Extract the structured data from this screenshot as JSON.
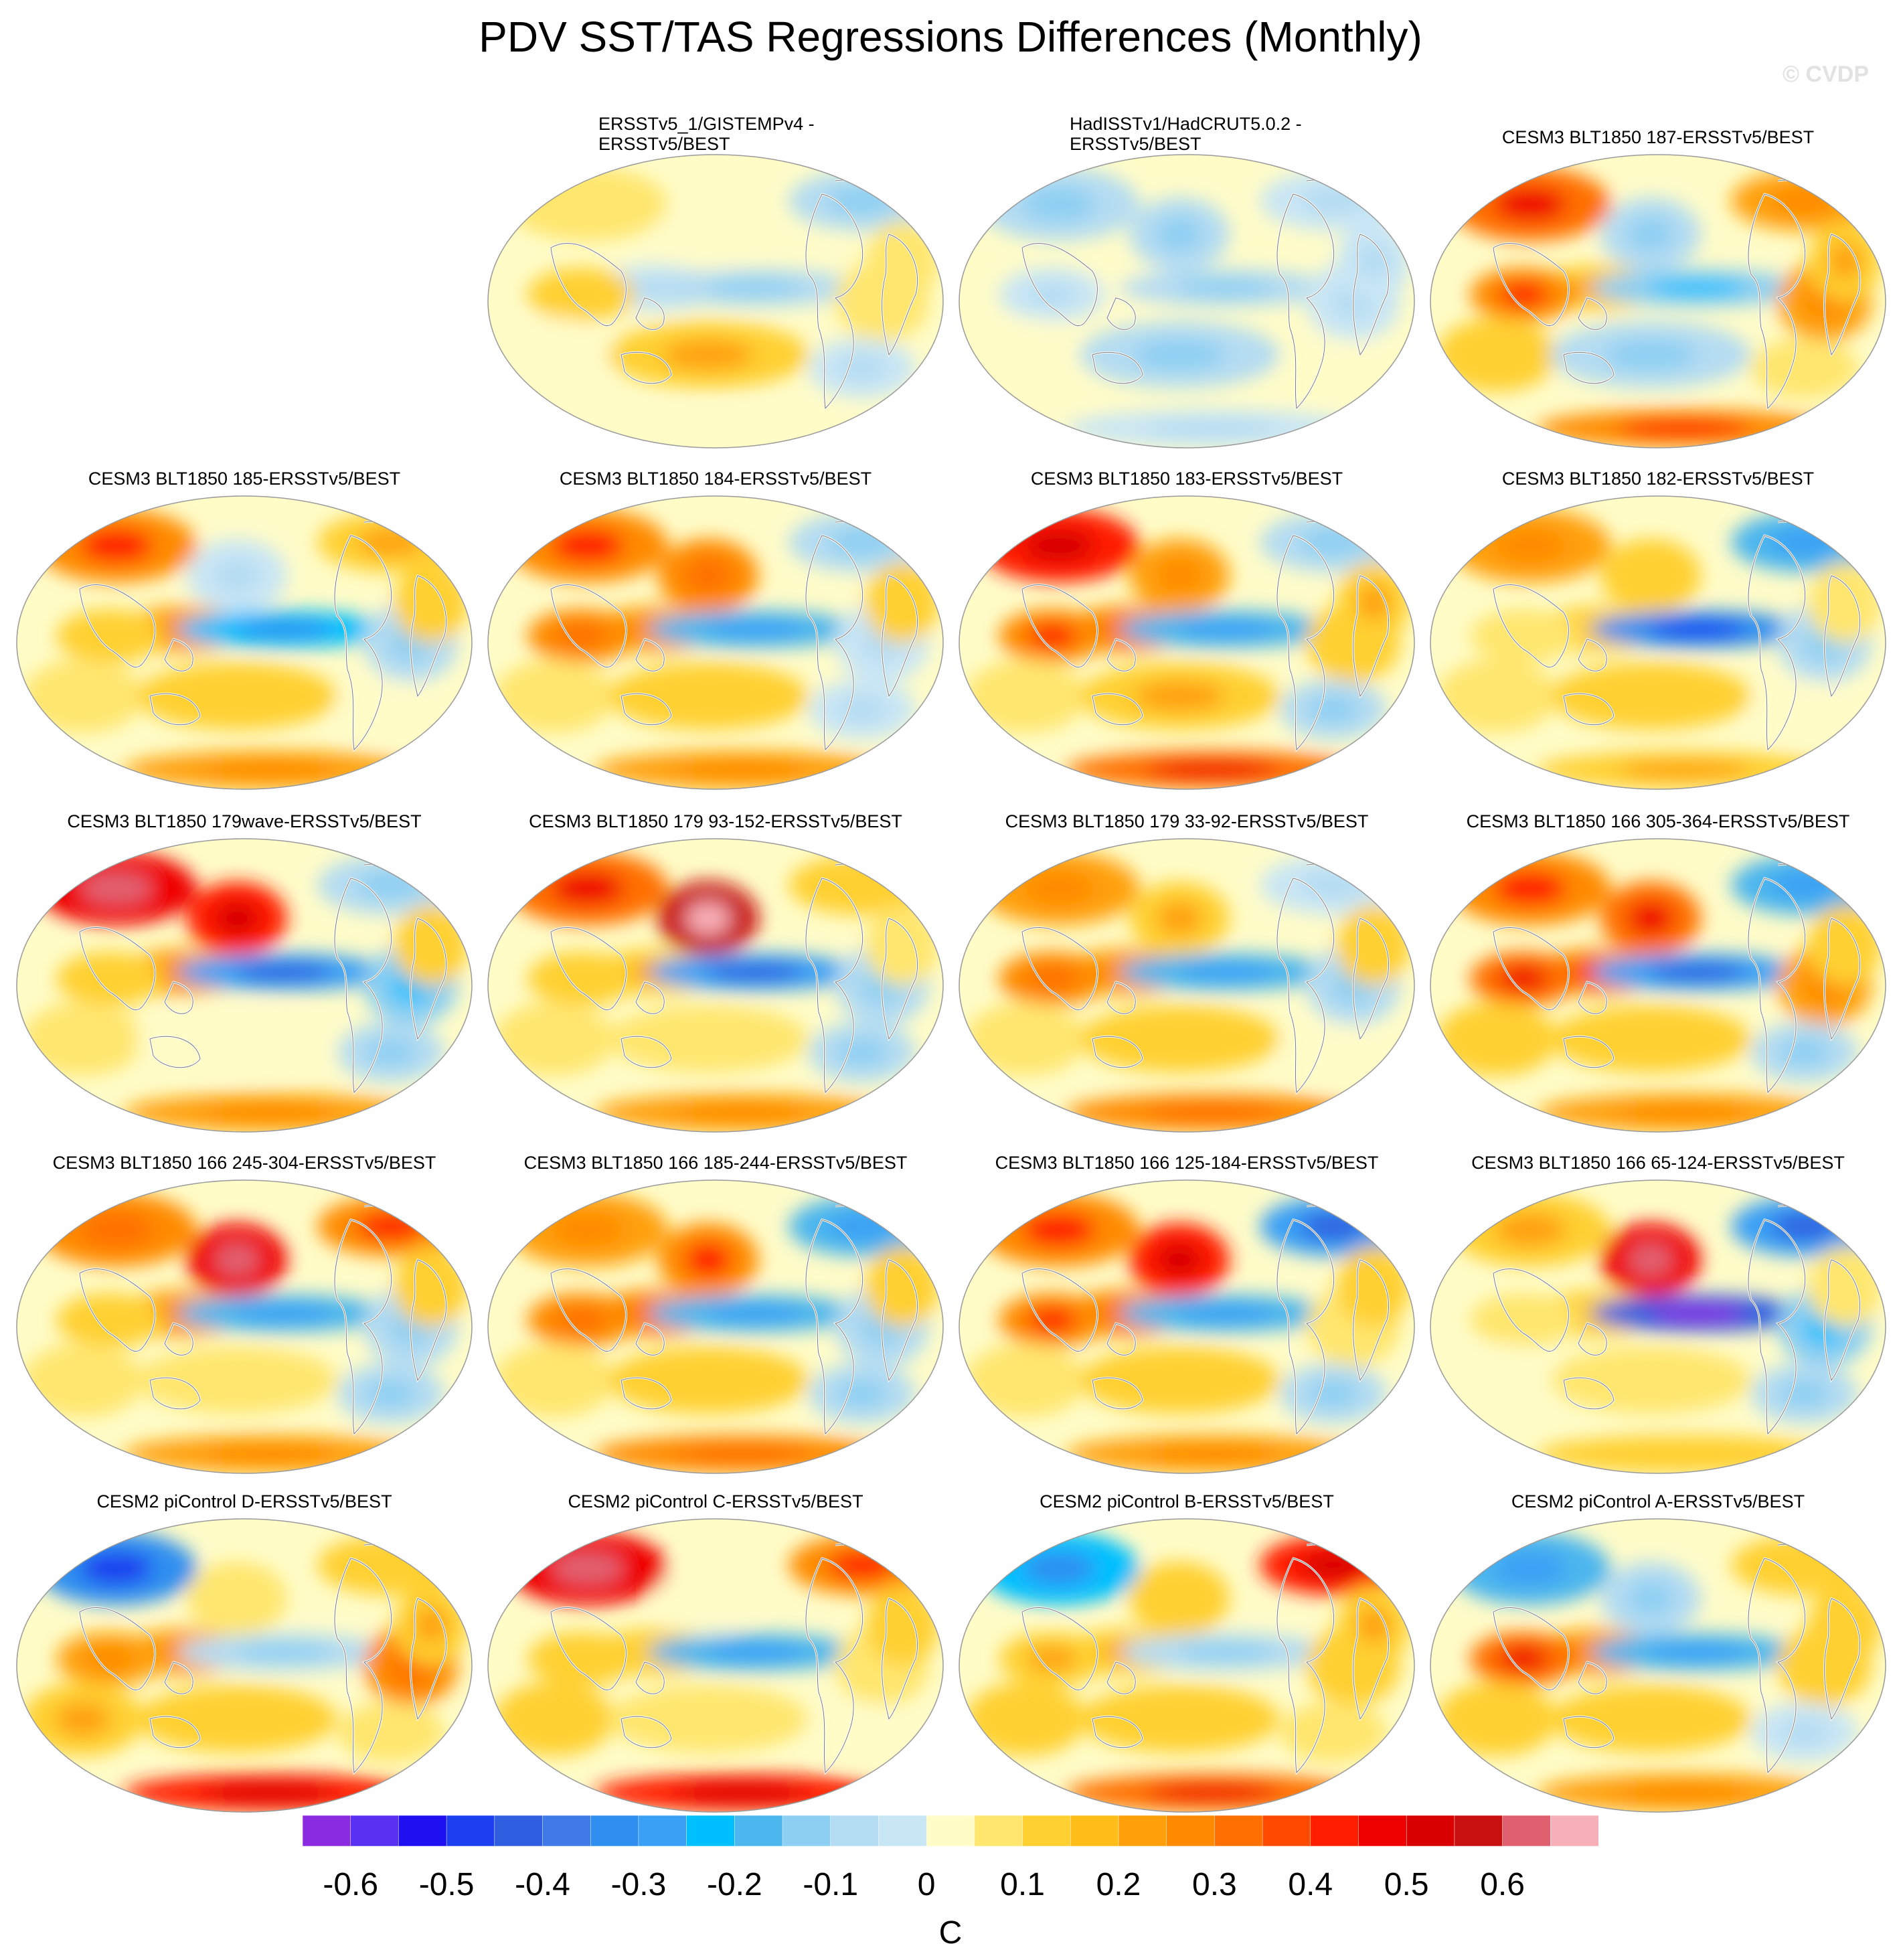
{
  "title": "PDV SST/TAS Regressions Differences (Monthly)",
  "watermark": "© CVDP",
  "units": "C",
  "colorbar": {
    "labels": [
      "-0.6",
      "-0.5",
      "-0.4",
      "-0.3",
      "-0.2",
      "-0.1",
      "0",
      "0.1",
      "0.2",
      "0.3",
      "0.4",
      "0.5",
      "0.6"
    ],
    "colors": [
      "#8a2be2",
      "#5a30f2",
      "#1e10f0",
      "#1c3ff0",
      "#2f5fe0",
      "#3f7ae8",
      "#2f8ff0",
      "#3aa0f5",
      "#00bfff",
      "#4cb6ee",
      "#8ccff2",
      "#b4dcf2",
      "#c9e6f5",
      "#fffcc8",
      "#ffe66e",
      "#ffd032",
      "#ffbd1a",
      "#ffa00a",
      "#ff8a00",
      "#ff7000",
      "#ff4a00",
      "#ff1e00",
      "#ef0000",
      "#d80000",
      "#c81010",
      "#e06070",
      "#f8b0b8"
    ]
  },
  "panels": [
    {
      "title": "ERSSTv5_1/GISTEMPv4 -\nERSSTv5/BEST",
      "two_line": true,
      "pattern": [
        0.05,
        -0.1,
        0.0,
        -0.05,
        0.1,
        -0.1,
        0.05,
        0.0,
        0.15,
        -0.05,
        0.0,
        0.05
      ]
    },
    {
      "title": "HadISSTv1/HadCRUT5.0.2 -\nERSSTv5/BEST",
      "two_line": true,
      "pattern": [
        -0.1,
        -0.05,
        -0.1,
        0.0,
        -0.05,
        -0.1,
        -0.05,
        0.0,
        -0.1,
        0.0,
        -0.05,
        -0.05
      ]
    },
    {
      "title": "CESM3 BLT1850 187-ERSSTv5/BEST",
      "two_line": false,
      "pattern": [
        0.35,
        0.2,
        -0.1,
        0.15,
        0.3,
        -0.15,
        0.2,
        0.1,
        -0.1,
        0.05,
        0.3,
        0.15
      ]
    },
    {
      "title": "CESM3 BLT1850 185-ERSSTv5/BEST",
      "two_line": false,
      "pattern": [
        0.3,
        0.15,
        -0.05,
        0.2,
        0.1,
        -0.25,
        -0.1,
        0.05,
        0.1,
        0.0,
        0.2,
        0.1
      ]
    },
    {
      "title": "CESM3 BLT1850 184-ERSSTv5/BEST",
      "two_line": false,
      "pattern": [
        0.3,
        -0.1,
        0.25,
        0.2,
        0.25,
        -0.2,
        -0.05,
        0.05,
        0.1,
        -0.05,
        0.2,
        0.1
      ]
    },
    {
      "title": "CESM3 BLT1850 183-ERSSTv5/BEST",
      "two_line": false,
      "pattern": [
        0.4,
        -0.1,
        0.2,
        0.25,
        0.3,
        -0.2,
        0.1,
        0.05,
        0.15,
        -0.1,
        0.35,
        0.15
      ]
    },
    {
      "title": "CESM3 BLT1850 182-ERSSTv5/BEST",
      "two_line": false,
      "pattern": [
        0.2,
        -0.2,
        0.1,
        0.1,
        0.05,
        -0.35,
        -0.1,
        0.05,
        0.1,
        0.0,
        0.15,
        0.05
      ]
    },
    {
      "title": "CESM3 BLT1850 179wave-ERSSTv5/BEST",
      "two_line": false,
      "pattern": [
        0.45,
        -0.1,
        0.4,
        0.2,
        0.1,
        -0.3,
        -0.15,
        0.05,
        0.0,
        -0.1,
        0.2,
        0.1
      ]
    },
    {
      "title": "CESM3 BLT1850 179 93-152-ERSSTv5/BEST",
      "two_line": false,
      "pattern": [
        0.35,
        0.1,
        0.55,
        0.15,
        0.1,
        -0.3,
        -0.1,
        0.05,
        0.05,
        -0.1,
        0.2,
        0.05
      ]
    },
    {
      "title": "CESM3 BLT1850 179 33-92-ERSSTv5/BEST",
      "two_line": false,
      "pattern": [
        0.2,
        -0.05,
        0.15,
        0.2,
        0.25,
        -0.2,
        -0.1,
        0.05,
        0.1,
        0.0,
        0.25,
        0.1
      ]
    },
    {
      "title": "CESM3 BLT1850 166 305-364-ERSSTv5/BEST",
      "two_line": false,
      "pattern": [
        0.3,
        -0.2,
        0.35,
        0.3,
        0.35,
        -0.3,
        0.2,
        0.1,
        0.1,
        -0.1,
        0.2,
        0.1
      ]
    },
    {
      "title": "CESM3 BLT1850 166 245-304-ERSSTv5/BEST",
      "two_line": false,
      "pattern": [
        0.25,
        0.3,
        0.45,
        0.2,
        0.1,
        -0.2,
        -0.1,
        0.05,
        0.05,
        -0.1,
        0.2,
        0.1
      ]
    },
    {
      "title": "CESM3 BLT1850 166 185-244-ERSSTv5/BEST",
      "two_line": false,
      "pattern": [
        0.2,
        -0.2,
        0.3,
        0.25,
        0.25,
        -0.2,
        -0.1,
        0.05,
        0.1,
        -0.1,
        0.25,
        0.1
      ]
    },
    {
      "title": "CESM3 BLT1850 166 125-184-ERSSTv5/BEST",
      "two_line": false,
      "pattern": [
        0.3,
        -0.3,
        0.4,
        0.25,
        0.3,
        -0.2,
        0.05,
        0.05,
        0.1,
        -0.1,
        0.2,
        0.1
      ]
    },
    {
      "title": "CESM3 BLT1850 166 65-124-ERSSTv5/BEST",
      "two_line": false,
      "pattern": [
        0.15,
        -0.3,
        0.45,
        0.1,
        0.05,
        -0.45,
        -0.15,
        0.0,
        0.05,
        -0.1,
        0.1,
        0.05
      ]
    },
    {
      "title": "CESM2 piControl D-ERSSTv5/BEST",
      "two_line": false,
      "pattern": [
        -0.35,
        0.1,
        0.05,
        0.2,
        0.2,
        -0.1,
        0.25,
        0.15,
        0.1,
        0.05,
        0.4,
        0.15
      ]
    },
    {
      "title": "CESM2 piControl C-ERSSTv5/BEST",
      "two_line": false,
      "pattern": [
        0.45,
        0.3,
        0.0,
        0.1,
        0.1,
        -0.2,
        0.05,
        0.1,
        0.05,
        0.0,
        0.4,
        0.1
      ]
    },
    {
      "title": "CESM2 piControl B-ERSSTv5/BEST",
      "two_line": false,
      "pattern": [
        -0.25,
        0.4,
        0.1,
        0.15,
        0.15,
        -0.1,
        0.1,
        0.1,
        0.1,
        0.05,
        0.35,
        0.15
      ]
    },
    {
      "title": "CESM2 piControl A-ERSSTv5/BEST",
      "two_line": false,
      "pattern": [
        -0.2,
        0.1,
        -0.1,
        0.2,
        0.35,
        -0.2,
        0.1,
        0.1,
        0.1,
        -0.05,
        0.2,
        0.1
      ]
    }
  ]
}
